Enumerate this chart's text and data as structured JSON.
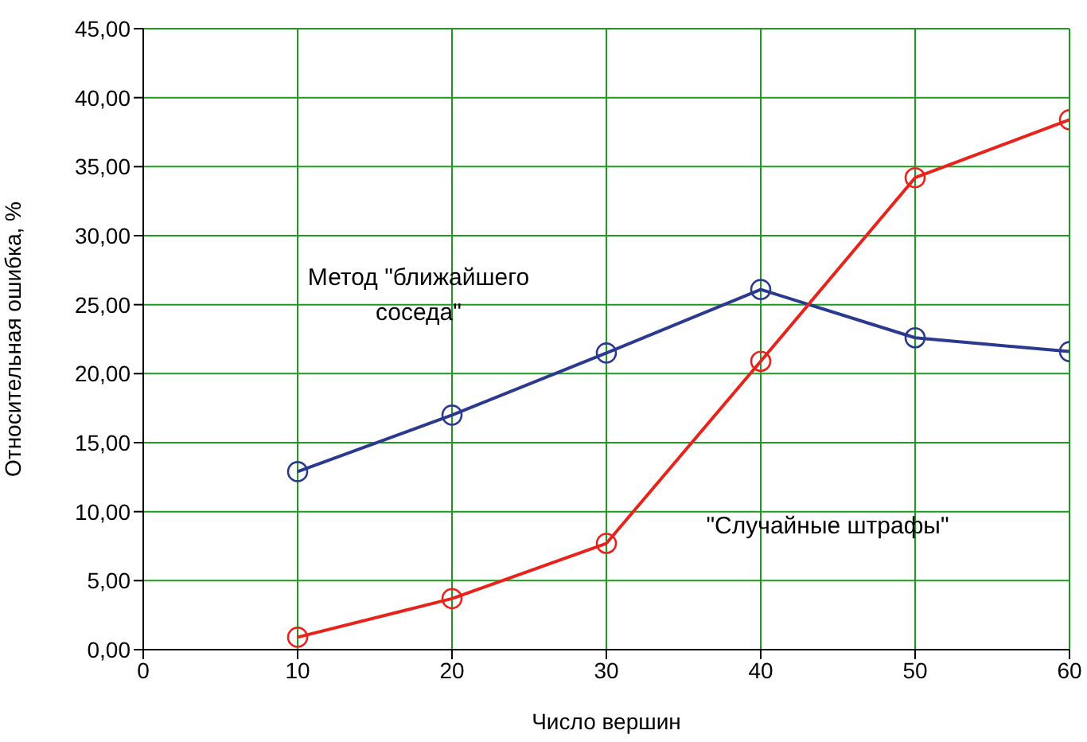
{
  "chart_data": {
    "type": "line",
    "xlabel": "Число вершин",
    "ylabel": "Относительная ошибка, %",
    "x": [
      10,
      20,
      30,
      40,
      50,
      60
    ],
    "series": [
      {
        "name": "Метод \"ближайшего соседа\"",
        "color": "#2b3a8f",
        "values": [
          12.9,
          17.0,
          21.5,
          26.1,
          22.6,
          21.6
        ]
      },
      {
        "name": "\"Случайные штрафы\"",
        "color": "#e8231c",
        "values": [
          0.9,
          3.7,
          7.7,
          20.9,
          34.2,
          38.4
        ]
      }
    ],
    "xlim": [
      0,
      60
    ],
    "xticks": [
      0,
      10,
      20,
      30,
      40,
      50,
      60
    ],
    "ylim": [
      0,
      45
    ],
    "yticks": [
      {
        "value": 0,
        "label": "0,00"
      },
      {
        "value": 5,
        "label": "5,00"
      },
      {
        "value": 10,
        "label": "10,00"
      },
      {
        "value": 15,
        "label": "15,00"
      },
      {
        "value": 20,
        "label": "20,00"
      },
      {
        "value": 25,
        "label": "25,00"
      },
      {
        "value": 30,
        "label": "30,00"
      },
      {
        "value": 35,
        "label": "35,00"
      },
      {
        "value": 40,
        "label": "40,00"
      },
      {
        "value": 45,
        "label": "45,00"
      }
    ],
    "grid": true,
    "marker": "circle",
    "line_style": "solid"
  }
}
